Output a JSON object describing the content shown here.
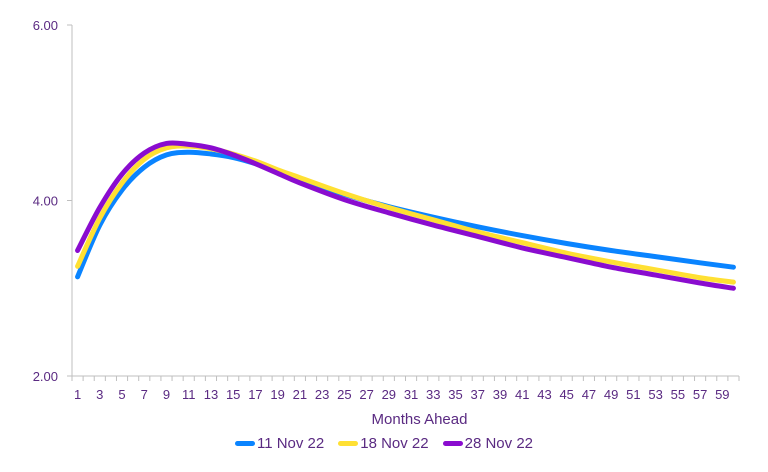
{
  "chart_data": {
    "type": "line",
    "title": "",
    "xlabel": "Months Ahead",
    "ylabel": "",
    "ylim": [
      2,
      6
    ],
    "yticks": [
      "2.00",
      "4.00",
      "6.00"
    ],
    "xcategories_count": 60,
    "xtick_labels": [
      "1",
      "3",
      "5",
      "7",
      "9",
      "11",
      "13",
      "15",
      "17",
      "19",
      "21",
      "23",
      "25",
      "27",
      "29",
      "31",
      "33",
      "35",
      "37",
      "39",
      "41",
      "43",
      "45",
      "47",
      "49",
      "51",
      "53",
      "55",
      "57",
      "59"
    ],
    "x": [
      1,
      3,
      5,
      7,
      9,
      11,
      13,
      15,
      17,
      19,
      21,
      25,
      29,
      33,
      37,
      41,
      45,
      49,
      53,
      57,
      60
    ],
    "series": [
      {
        "name": "11 Nov 22",
        "color": "#0a84ff",
        "values": [
          3.13,
          3.72,
          4.12,
          4.38,
          4.52,
          4.55,
          4.53,
          4.49,
          4.42,
          4.33,
          4.24,
          4.07,
          3.93,
          3.81,
          3.7,
          3.6,
          3.51,
          3.43,
          3.36,
          3.29,
          3.24
        ]
      },
      {
        "name": "18 Nov 22",
        "color": "#ffe033",
        "values": [
          3.25,
          3.8,
          4.2,
          4.47,
          4.6,
          4.62,
          4.59,
          4.53,
          4.45,
          4.35,
          4.26,
          4.08,
          3.92,
          3.78,
          3.64,
          3.52,
          3.4,
          3.3,
          3.21,
          3.12,
          3.07
        ]
      },
      {
        "name": "28 Nov 22",
        "color": "#8a0ccf",
        "values": [
          3.43,
          3.92,
          4.3,
          4.54,
          4.65,
          4.64,
          4.6,
          4.52,
          4.42,
          4.31,
          4.2,
          4.01,
          3.86,
          3.72,
          3.59,
          3.46,
          3.35,
          3.24,
          3.15,
          3.06,
          3.0
        ]
      }
    ],
    "legend": "bottom",
    "grid": false
  }
}
